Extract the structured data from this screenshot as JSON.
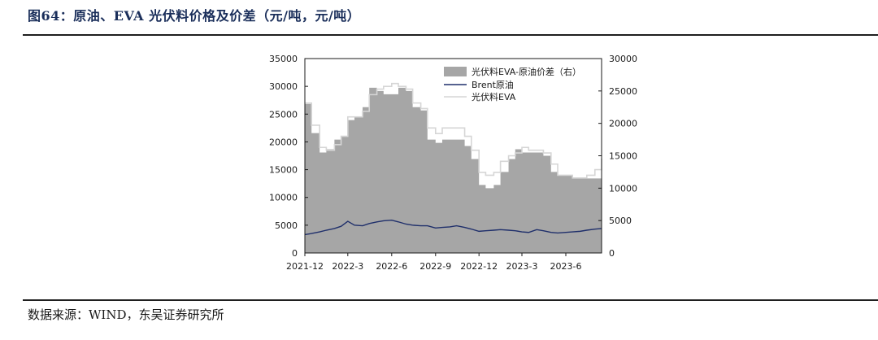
{
  "figure": {
    "title": "图64：原油、EVA 光伏料价格及价差（元/吨，元/吨）",
    "source": "数据来源：WIND，东吴证券研究所"
  },
  "chart_data": {
    "type": "line",
    "x_ticks": [
      "2021-12",
      "2022-3",
      "2022-6",
      "2022-9",
      "2022-12",
      "2023-3",
      "2023-6"
    ],
    "x_tick_dates": [
      "2021-12-01",
      "2022-03-01",
      "2022-06-01",
      "2022-09-01",
      "2022-12-01",
      "2023-03-01",
      "2023-06-01"
    ],
    "xlim": [
      "2021-12-01",
      "2023-08-15"
    ],
    "y_left": {
      "ticks": [
        "0",
        "5000",
        "10000",
        "15000",
        "20000",
        "25000",
        "30000",
        "35000"
      ],
      "ylim": [
        0,
        35000
      ]
    },
    "y_right": {
      "ticks": [
        "0",
        "5000",
        "10000",
        "15000",
        "20000",
        "25000",
        "30000"
      ],
      "ylim": [
        0,
        30000
      ]
    },
    "grid": false,
    "legend_position": "top-right",
    "legend": [
      "光伏料EVA-原油价差（右）",
      "Brent原油",
      "光伏料EVA"
    ],
    "colors": {
      "spread": "#a6a6a6",
      "brent": "#1f2f6b",
      "eva": "#d6d6d6"
    },
    "series": [
      {
        "name": "光伏料EVA-原油价差（右）",
        "type": "area",
        "axis": "right",
        "x": [
          "2021-12-01",
          "2021-12-15",
          "2022-01-01",
          "2022-01-15",
          "2022-02-01",
          "2022-02-15",
          "2022-03-01",
          "2022-03-15",
          "2022-04-01",
          "2022-04-15",
          "2022-05-01",
          "2022-05-15",
          "2022-06-01",
          "2022-06-15",
          "2022-07-01",
          "2022-07-15",
          "2022-08-01",
          "2022-08-15",
          "2022-09-01",
          "2022-09-15",
          "2022-10-01",
          "2022-10-15",
          "2022-11-01",
          "2022-11-15",
          "2022-12-01",
          "2022-12-15",
          "2023-01-01",
          "2023-01-15",
          "2023-02-01",
          "2023-02-15",
          "2023-03-01",
          "2023-03-15",
          "2023-04-01",
          "2023-04-15",
          "2023-05-01",
          "2023-05-15",
          "2023-06-01",
          "2023-06-15",
          "2023-07-01",
          "2023-07-15",
          "2023-08-01",
          "2023-08-15"
        ],
        "values": [
          23000,
          18500,
          15500,
          16000,
          17500,
          18000,
          20500,
          21000,
          22500,
          25500,
          25000,
          24500,
          24500,
          25500,
          25000,
          22500,
          22000,
          17500,
          17000,
          17500,
          17500,
          17500,
          16500,
          14500,
          10500,
          10000,
          10500,
          12500,
          14500,
          16000,
          15500,
          15500,
          15500,
          15000,
          12500,
          12000,
          12000,
          11500,
          11500,
          11500,
          11500,
          12500
        ]
      },
      {
        "name": "Brent原油",
        "type": "line",
        "axis": "left",
        "x": [
          "2021-12-01",
          "2021-12-15",
          "2022-01-01",
          "2022-01-15",
          "2022-02-01",
          "2022-02-15",
          "2022-03-01",
          "2022-03-15",
          "2022-04-01",
          "2022-04-15",
          "2022-05-01",
          "2022-05-15",
          "2022-06-01",
          "2022-06-15",
          "2022-07-01",
          "2022-07-15",
          "2022-08-01",
          "2022-08-15",
          "2022-09-01",
          "2022-09-15",
          "2022-10-01",
          "2022-10-15",
          "2022-11-01",
          "2022-11-15",
          "2022-12-01",
          "2022-12-15",
          "2023-01-01",
          "2023-01-15",
          "2023-02-01",
          "2023-02-15",
          "2023-03-01",
          "2023-03-15",
          "2023-04-01",
          "2023-04-15",
          "2023-05-01",
          "2023-05-15",
          "2023-06-01",
          "2023-06-15",
          "2023-07-01",
          "2023-07-15",
          "2023-08-01",
          "2023-08-15"
        ],
        "values": [
          3300,
          3500,
          3800,
          4100,
          4400,
          4800,
          5700,
          5000,
          4900,
          5300,
          5600,
          5800,
          5900,
          5600,
          5200,
          5000,
          4900,
          4900,
          4500,
          4600,
          4700,
          4900,
          4600,
          4300,
          3900,
          4000,
          4100,
          4200,
          4100,
          4000,
          3800,
          3700,
          4200,
          4000,
          3700,
          3600,
          3700,
          3800,
          3900,
          4100,
          4300,
          4400
        ]
      },
      {
        "name": "光伏料EVA",
        "type": "line",
        "axis": "left",
        "x": [
          "2021-12-01",
          "2021-12-15",
          "2022-01-01",
          "2022-01-15",
          "2022-02-01",
          "2022-02-15",
          "2022-03-01",
          "2022-03-15",
          "2022-04-01",
          "2022-04-15",
          "2022-05-01",
          "2022-05-15",
          "2022-06-01",
          "2022-06-15",
          "2022-07-01",
          "2022-07-15",
          "2022-08-01",
          "2022-08-15",
          "2022-09-01",
          "2022-09-15",
          "2022-10-01",
          "2022-10-15",
          "2022-11-01",
          "2022-11-15",
          "2022-12-01",
          "2022-12-15",
          "2023-01-01",
          "2023-01-15",
          "2023-02-01",
          "2023-02-15",
          "2023-03-01",
          "2023-03-15",
          "2023-04-01",
          "2023-04-15",
          "2023-05-01",
          "2023-05-15",
          "2023-06-01",
          "2023-06-15",
          "2023-07-01",
          "2023-07-15",
          "2023-08-01",
          "2023-08-15"
        ],
        "values": [
          27000,
          23000,
          19000,
          18500,
          19500,
          21000,
          24500,
          24500,
          25500,
          28500,
          29500,
          30000,
          30500,
          30000,
          29500,
          27000,
          26000,
          22500,
          21500,
          22500,
          22500,
          22500,
          21000,
          18500,
          14500,
          14000,
          14500,
          16500,
          17500,
          18000,
          19000,
          18500,
          18500,
          18000,
          16000,
          14000,
          14000,
          13500,
          13500,
          14000,
          15000,
          17000
        ]
      }
    ]
  }
}
